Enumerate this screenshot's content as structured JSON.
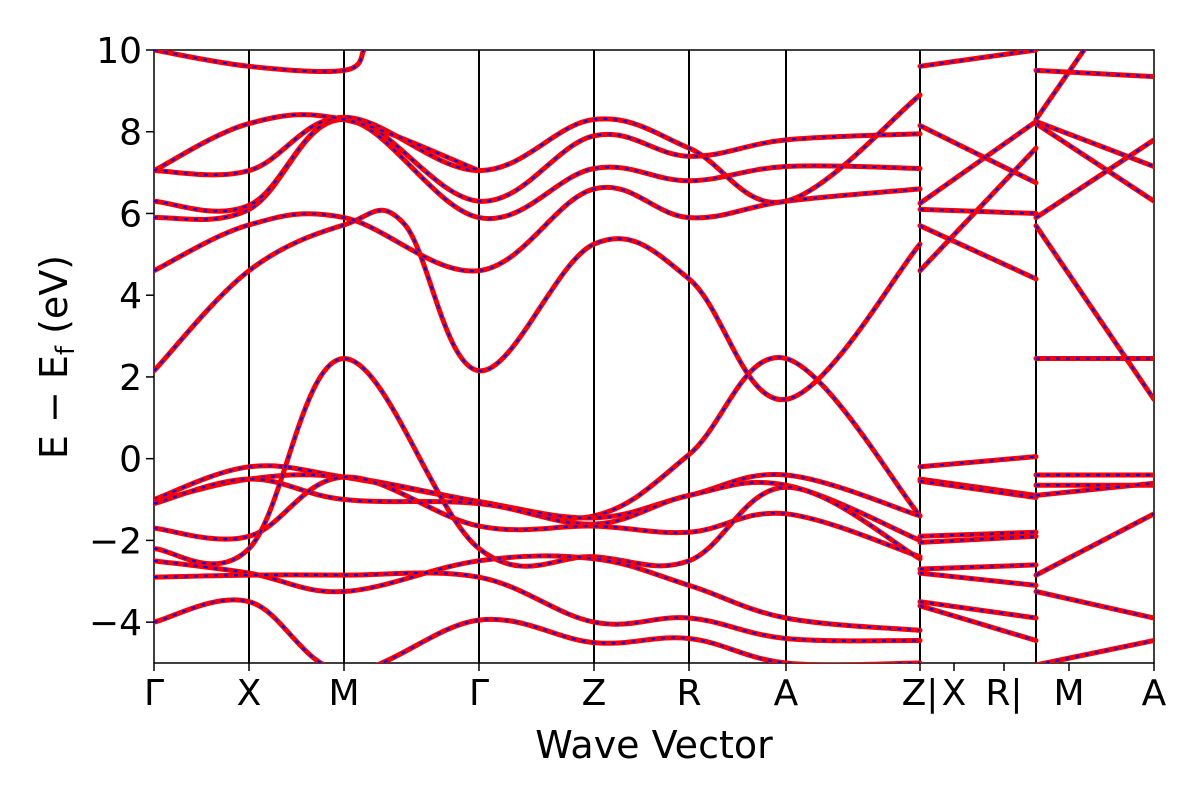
{
  "chart_data": {
    "type": "line",
    "title": "",
    "xlabel": "Wave Vector",
    "ylabel_main": "E − E",
    "ylabel_sub": "f",
    "ylabel_unit": " (eV)",
    "ylim": [
      -5,
      10
    ],
    "yticks": [
      -4,
      -2,
      0,
      2,
      4,
      6,
      8,
      10
    ],
    "ytick_labels": [
      "−4",
      "−2",
      "0",
      "2",
      "4",
      "6",
      "8",
      "10"
    ],
    "x_range": [
      0,
      10
    ],
    "kpoints": [
      {
        "x": 0.0,
        "label": "Γ"
      },
      {
        "x": 0.95,
        "label": "X"
      },
      {
        "x": 1.9,
        "label": "M"
      },
      {
        "x": 3.25,
        "label": "Γ"
      },
      {
        "x": 4.4,
        "label": "Z"
      },
      {
        "x": 5.35,
        "label": "R"
      },
      {
        "x": 6.32,
        "label": "A"
      },
      {
        "x": 7.66,
        "label": "Z|"
      },
      {
        "x": 8.0,
        "label": "X"
      },
      {
        "x": 8.5,
        "label": "R|"
      },
      {
        "x": 9.15,
        "label": "M"
      },
      {
        "x": 10.0,
        "label": "A"
      }
    ],
    "vlines": [
      0.95,
      1.9,
      3.25,
      4.4,
      5.35,
      6.32,
      7.66,
      8.82
    ],
    "series": [
      {
        "color": "#ff0000",
        "style": "solid",
        "bands": [
          [
            [
              0,
              2.15
            ],
            [
              0.95,
              4.6
            ],
            [
              1.9,
              5.72
            ],
            [
              2.5,
              5.75
            ],
            [
              3.25,
              2.15
            ],
            [
              4.4,
              5.25
            ],
            [
              5.35,
              4.4
            ],
            [
              6.32,
              1.45
            ],
            [
              7.66,
              5.25
            ]
          ],
          [
            [
              0,
              4.6
            ],
            [
              0.95,
              5.72
            ],
            [
              1.9,
              5.9
            ],
            [
              3.25,
              4.6
            ],
            [
              4.4,
              6.6
            ],
            [
              5.35,
              5.9
            ],
            [
              6.32,
              6.3
            ],
            [
              7.66,
              6.6
            ]
          ],
          [
            [
              0,
              5.9
            ],
            [
              0.95,
              6.1
            ],
            [
              1.9,
              8.3
            ],
            [
              3.25,
              5.9
            ],
            [
              4.4,
              7.1
            ],
            [
              5.35,
              6.8
            ],
            [
              6.32,
              7.15
            ],
            [
              7.66,
              7.1
            ]
          ],
          [
            [
              0,
              6.3
            ],
            [
              0.95,
              6.2
            ],
            [
              1.9,
              8.35
            ],
            [
              3.25,
              6.3
            ],
            [
              4.4,
              7.9
            ],
            [
              5.35,
              7.4
            ],
            [
              6.32,
              7.8
            ],
            [
              7.66,
              7.95
            ]
          ],
          [
            [
              0,
              7.05
            ],
            [
              0.95,
              7.05
            ],
            [
              1.9,
              8.35
            ],
            [
              3.25,
              7.05
            ],
            [
              4.4,
              8.3
            ],
            [
              5.35,
              7.6
            ],
            [
              6.32,
              6.3
            ],
            [
              7.66,
              8.9
            ]
          ],
          [
            [
              0,
              10.0
            ],
            [
              0.95,
              9.6
            ],
            [
              1.9,
              9.5
            ],
            [
              2.1,
              10.0
            ]
          ],
          [
            [
              0,
              7.05
            ],
            [
              0.95,
              8.2
            ],
            [
              1.9,
              8.3
            ],
            [
              3.25,
              7.05
            ]
          ],
          [
            [
              0,
              -1.0
            ],
            [
              0.95,
              -0.2
            ],
            [
              1.9,
              -0.45
            ],
            [
              3.25,
              -1.05
            ],
            [
              4.4,
              -1.4
            ],
            [
              5.35,
              0.1
            ],
            [
              6.32,
              2.45
            ],
            [
              7.66,
              -1.4
            ]
          ],
          [
            [
              0,
              -1.05
            ],
            [
              0.95,
              -0.5
            ],
            [
              1.9,
              -0.45
            ],
            [
              3.25,
              -1.05
            ],
            [
              4.4,
              -1.45
            ],
            [
              5.35,
              -0.9
            ],
            [
              6.32,
              -0.4
            ],
            [
              7.66,
              -1.4
            ]
          ],
          [
            [
              0,
              -1.1
            ],
            [
              0.95,
              -0.5
            ],
            [
              1.9,
              -1.0
            ],
            [
              3.25,
              -1.1
            ],
            [
              4.4,
              -1.6
            ],
            [
              5.35,
              -0.9
            ],
            [
              6.32,
              -0.65
            ],
            [
              7.66,
              -2.0
            ]
          ],
          [
            [
              0,
              -1.7
            ],
            [
              0.95,
              -1.9
            ],
            [
              1.9,
              -0.45
            ],
            [
              3.25,
              -1.65
            ],
            [
              4.4,
              -1.65
            ],
            [
              5.35,
              -1.8
            ],
            [
              6.32,
              -1.35
            ],
            [
              7.66,
              -2.4
            ]
          ],
          [
            [
              0,
              -2.2
            ],
            [
              0.95,
              -2.2
            ],
            [
              1.9,
              2.45
            ],
            [
              3.25,
              -2.2
            ],
            [
              4.4,
              -2.4
            ],
            [
              5.35,
              -2.5
            ],
            [
              6.32,
              -0.7
            ],
            [
              7.66,
              -2.45
            ]
          ],
          [
            [
              0,
              -2.5
            ],
            [
              0.95,
              -2.8
            ],
            [
              1.9,
              -3.25
            ],
            [
              3.25,
              -2.5
            ],
            [
              4.4,
              -2.45
            ],
            [
              5.35,
              -3.1
            ],
            [
              6.32,
              -3.9
            ],
            [
              7.66,
              -4.2
            ]
          ],
          [
            [
              0,
              -2.9
            ],
            [
              0.95,
              -2.85
            ],
            [
              1.9,
              -2.85
            ],
            [
              3.25,
              -2.9
            ],
            [
              4.4,
              -4.0
            ],
            [
              5.35,
              -3.9
            ],
            [
              6.32,
              -4.4
            ],
            [
              7.66,
              -4.45
            ]
          ],
          [
            [
              0,
              -4.0
            ],
            [
              0.95,
              -3.5
            ],
            [
              1.9,
              -5.2
            ],
            [
              3.25,
              -3.95
            ],
            [
              4.4,
              -4.5
            ],
            [
              5.35,
              -4.4
            ],
            [
              6.32,
              -5.0
            ],
            [
              7.66,
              -5.0
            ]
          ],
          [
            [
              7.66,
              9.6
            ],
            [
              8.82,
              10.0
            ]
          ],
          [
            [
              7.66,
              4.6
            ],
            [
              8.82,
              7.6
            ]
          ],
          [
            [
              7.66,
              5.7
            ],
            [
              8.82,
              4.4
            ]
          ],
          [
            [
              7.66,
              6.1
            ],
            [
              8.82,
              6.0
            ]
          ],
          [
            [
              7.66,
              6.25
            ],
            [
              8.82,
              8.25
            ]
          ],
          [
            [
              7.66,
              8.15
            ],
            [
              8.82,
              6.75
            ]
          ],
          [
            [
              7.66,
              -0.2
            ],
            [
              8.82,
              0.05
            ]
          ],
          [
            [
              7.66,
              -0.5
            ],
            [
              8.82,
              -0.9
            ]
          ],
          [
            [
              7.66,
              -0.55
            ],
            [
              8.82,
              -0.95
            ]
          ],
          [
            [
              7.66,
              -1.9
            ],
            [
              8.82,
              -1.8
            ]
          ],
          [
            [
              7.66,
              -2.05
            ],
            [
              8.82,
              -1.9
            ]
          ],
          [
            [
              7.66,
              -2.7
            ],
            [
              8.82,
              -2.6
            ]
          ],
          [
            [
              7.66,
              -2.8
            ],
            [
              8.82,
              -3.1
            ]
          ],
          [
            [
              7.66,
              -3.5
            ],
            [
              8.82,
              -3.9
            ]
          ],
          [
            [
              7.66,
              -3.6
            ],
            [
              8.82,
              -4.45
            ]
          ],
          [
            [
              8.82,
              9.5
            ],
            [
              10.0,
              9.35
            ]
          ],
          [
            [
              8.82,
              8.25
            ],
            [
              10.0,
              7.15
            ]
          ],
          [
            [
              8.82,
              8.2
            ],
            [
              10.0,
              6.3
            ]
          ],
          [
            [
              8.82,
              5.9
            ],
            [
              10.0,
              7.8
            ]
          ],
          [
            [
              8.82,
              5.7
            ],
            [
              10.0,
              1.45
            ]
          ],
          [
            [
              8.82,
              2.45
            ],
            [
              10.0,
              2.45
            ]
          ],
          [
            [
              8.82,
              -0.4
            ],
            [
              10.0,
              -0.4
            ]
          ],
          [
            [
              8.82,
              -0.65
            ],
            [
              10.0,
              -0.65
            ]
          ],
          [
            [
              8.82,
              -0.9
            ],
            [
              10.0,
              -0.6
            ]
          ],
          [
            [
              8.82,
              -2.85
            ],
            [
              10.0,
              -1.35
            ]
          ],
          [
            [
              8.82,
              -3.25
            ],
            [
              10.0,
              -3.9
            ]
          ],
          [
            [
              8.82,
              -5.05
            ],
            [
              10.0,
              -4.45
            ]
          ],
          [
            [
              8.82,
              8.3
            ],
            [
              9.3,
              10.0
            ]
          ]
        ]
      },
      {
        "color": "#0000ff",
        "style": "dashed"
      }
    ],
    "grid": false,
    "legend": "none"
  }
}
